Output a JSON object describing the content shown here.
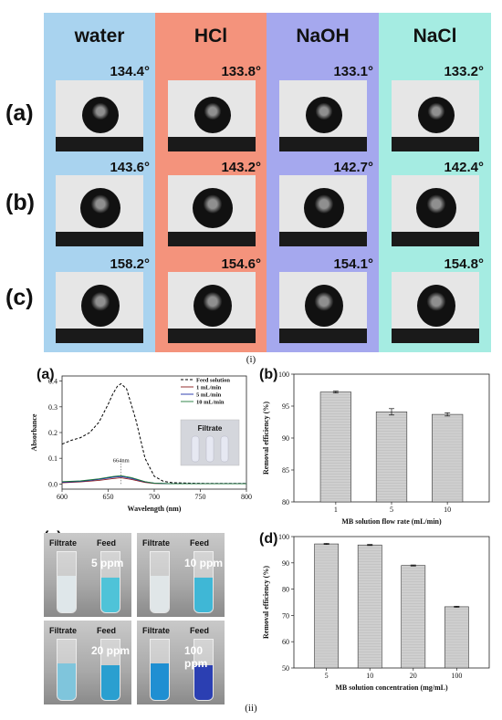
{
  "panel_i": {
    "columns": [
      {
        "label": "water",
        "color": "#a9d3ef"
      },
      {
        "label": "HCl",
        "color": "#f4937c"
      },
      {
        "label": "NaOH",
        "color": "#a5a8ee"
      },
      {
        "label": "NaCl",
        "color": "#a5ece2"
      }
    ],
    "rows": [
      {
        "label": "(a)",
        "angles": [
          "134.4°",
          "133.8°",
          "133.1°",
          "133.2°"
        ]
      },
      {
        "label": "(b)",
        "angles": [
          "143.6°",
          "143.2°",
          "142.7°",
          "142.4°"
        ]
      },
      {
        "label": "(c)",
        "angles": [
          "158.2°",
          "154.6°",
          "154.1°",
          "154.8°"
        ]
      }
    ],
    "caption": "(i)"
  },
  "panel_ii": {
    "caption": "(ii)",
    "sub_a": {
      "label": "(a)",
      "inset_label": "Filtrate",
      "peak_label": "664nm"
    },
    "sub_b": {
      "label": "(b)"
    },
    "sub_c": {
      "label": "(c)",
      "photos": [
        {
          "filtrate": "Filtrate",
          "feed": "Feed",
          "ppm": "5 ppm",
          "feed_color": "#4fc3d8",
          "filtrate_color": "#dfe7ea"
        },
        {
          "filtrate": "Filtrate",
          "feed": "Feed",
          "ppm": "10 ppm",
          "feed_color": "#3fb7d6",
          "filtrate_color": "#e0e6e8"
        },
        {
          "filtrate": "Filtrate",
          "feed": "Feed",
          "ppm": "20 ppm",
          "feed_color": "#2a9fd0",
          "filtrate_color": "#7fc5dc"
        },
        {
          "filtrate": "Filtrate",
          "feed": "Feed",
          "ppm": "100 ppm",
          "feed_color": "#2b3fb2",
          "filtrate_color": "#1f8fd2"
        }
      ]
    },
    "sub_d": {
      "label": "(d)"
    }
  },
  "chart_data": [
    {
      "type": "line",
      "xlabel": "Wavelength (nm)",
      "ylabel": "Absorbance",
      "xlim": [
        600,
        800
      ],
      "ylim": [
        -0.02,
        0.42
      ],
      "x_ticks": [
        "600",
        "650",
        "700",
        "750",
        "800"
      ],
      "y_ticks": [
        "0.0",
        "0.1",
        "0.2",
        "0.3",
        "0.4"
      ],
      "legend_position": "top-right",
      "series": [
        {
          "name": "Feed solution",
          "color": "#000000",
          "style": "dashed",
          "x": [
            600,
            610,
            620,
            630,
            640,
            650,
            655,
            660,
            664,
            670,
            680,
            690,
            700,
            710,
            720,
            740,
            760,
            780,
            800
          ],
          "y": [
            0.155,
            0.17,
            0.18,
            0.2,
            0.24,
            0.31,
            0.35,
            0.38,
            0.39,
            0.37,
            0.25,
            0.1,
            0.03,
            0.01,
            0.005,
            0.003,
            0.002,
            0.002,
            0.002
          ]
        },
        {
          "name": "1 mL/min",
          "color": "#8b1a1a",
          "style": "solid",
          "x": [
            600,
            620,
            640,
            655,
            664,
            675,
            690,
            700,
            720,
            800
          ],
          "y": [
            0.005,
            0.008,
            0.014,
            0.021,
            0.024,
            0.018,
            0.006,
            0.002,
            0.001,
            0.001
          ]
        },
        {
          "name": "5 mL/min",
          "color": "#1c2ea8",
          "style": "solid",
          "x": [
            600,
            620,
            640,
            655,
            664,
            675,
            690,
            700,
            720,
            800
          ],
          "y": [
            0.007,
            0.01,
            0.018,
            0.026,
            0.029,
            0.022,
            0.008,
            0.003,
            0.001,
            0.001
          ]
        },
        {
          "name": "10 mL/min",
          "color": "#1f7a3a",
          "style": "solid",
          "x": [
            600,
            620,
            640,
            655,
            664,
            675,
            690,
            700,
            720,
            800
          ],
          "y": [
            0.009,
            0.012,
            0.02,
            0.029,
            0.032,
            0.025,
            0.009,
            0.003,
            0.001,
            0.001
          ]
        }
      ]
    },
    {
      "type": "bar",
      "xlabel": "MB solution flow rate (mL/min)",
      "ylabel": "Removal efficiency (%)",
      "categories": [
        "1",
        "5",
        "10"
      ],
      "values": [
        97.2,
        94.1,
        93.7
      ],
      "errors": [
        0.15,
        0.5,
        0.25
      ],
      "ylim": [
        80,
        100
      ],
      "y_ticks": [
        "80",
        "85",
        "90",
        "95",
        "100"
      ]
    },
    {
      "type": "bar",
      "xlabel": "MB solution concentration (mg/mL)",
      "ylabel": "Removal efficiency (%)",
      "categories": [
        "5",
        "10",
        "20",
        "100"
      ],
      "values": [
        97.2,
        96.8,
        89.0,
        73.3
      ],
      "errors": [
        0.2,
        0.2,
        0.2,
        0.2
      ],
      "ylim": [
        50,
        100
      ],
      "y_ticks": [
        "50",
        "60",
        "70",
        "80",
        "90",
        "100"
      ]
    }
  ]
}
